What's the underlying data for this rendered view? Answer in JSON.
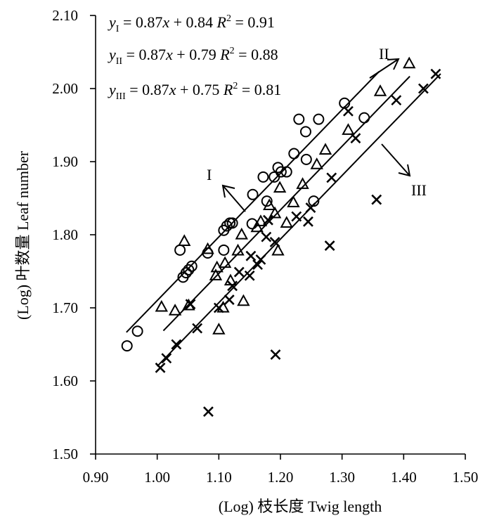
{
  "chart_data": {
    "type": "scatter",
    "title": "",
    "xlabel": "(Log) 枝长度 Twig length",
    "ylabel": "(Log) 叶数量 Leaf number",
    "xlim": [
      0.9,
      1.5
    ],
    "ylim": [
      1.5,
      2.1
    ],
    "x_ticks": [
      "0.90",
      "1.00",
      "1.10",
      "1.20",
      "1.30",
      "1.40",
      "1.50"
    ],
    "y_ticks": [
      "1.50",
      "1.60",
      "1.70",
      "1.80",
      "1.90",
      "2.00",
      "2.10"
    ],
    "grid": false,
    "series": [
      {
        "marker": "circle",
        "label": "I",
        "fit": {
          "slope": 0.87,
          "intercept": 0.84,
          "x_range": [
            0.95,
            1.36
          ]
        },
        "points": [
          [
            0.951,
            1.648
          ],
          [
            0.968,
            1.668
          ],
          [
            1.037,
            1.779
          ],
          [
            1.042,
            1.742
          ],
          [
            1.047,
            1.748
          ],
          [
            1.051,
            1.752
          ],
          [
            1.056,
            1.757
          ],
          [
            1.082,
            1.775
          ],
          [
            1.108,
            1.779
          ],
          [
            1.108,
            1.806
          ],
          [
            1.113,
            1.812
          ],
          [
            1.118,
            1.816
          ],
          [
            1.122,
            1.816
          ],
          [
            1.154,
            1.815
          ],
          [
            1.155,
            1.855
          ],
          [
            1.172,
            1.879
          ],
          [
            1.178,
            1.846
          ],
          [
            1.19,
            1.879
          ],
          [
            1.196,
            1.892
          ],
          [
            1.201,
            1.886
          ],
          [
            1.21,
            1.886
          ],
          [
            1.222,
            1.911
          ],
          [
            1.23,
            1.958
          ],
          [
            1.241,
            1.941
          ],
          [
            1.242,
            1.903
          ],
          [
            1.254,
            1.846
          ],
          [
            1.262,
            1.958
          ],
          [
            1.304,
            1.98
          ],
          [
            1.336,
            1.96
          ]
        ]
      },
      {
        "marker": "triangle",
        "label": "II",
        "fit": {
          "slope": 0.87,
          "intercept": 0.79,
          "x_range": [
            1.01,
            1.41
          ]
        },
        "points": [
          [
            1.007,
            1.701
          ],
          [
            1.029,
            1.696
          ],
          [
            1.044,
            1.791
          ],
          [
            1.051,
            1.703
          ],
          [
            1.082,
            1.78
          ],
          [
            1.095,
            1.744
          ],
          [
            1.097,
            1.755
          ],
          [
            1.1,
            1.67
          ],
          [
            1.107,
            1.7
          ],
          [
            1.11,
            1.761
          ],
          [
            1.119,
            1.737
          ],
          [
            1.131,
            1.778
          ],
          [
            1.137,
            1.8
          ],
          [
            1.14,
            1.709
          ],
          [
            1.162,
            1.81
          ],
          [
            1.168,
            1.818
          ],
          [
            1.182,
            1.84
          ],
          [
            1.191,
            1.829
          ],
          [
            1.196,
            1.778
          ],
          [
            1.199,
            1.864
          ],
          [
            1.21,
            1.816
          ],
          [
            1.221,
            1.844
          ],
          [
            1.236,
            1.869
          ],
          [
            1.273,
            1.916
          ],
          [
            1.259,
            1.896
          ],
          [
            1.31,
            1.943
          ],
          [
            1.362,
            1.996
          ],
          [
            1.409,
            2.034
          ]
        ]
      },
      {
        "marker": "cross",
        "label": "III",
        "fit": {
          "slope": 0.87,
          "intercept": 0.75,
          "x_range": [
            1.0,
            1.46
          ]
        },
        "points": [
          [
            1.005,
            1.618
          ],
          [
            1.015,
            1.631
          ],
          [
            1.031,
            1.65
          ],
          [
            1.054,
            1.705
          ],
          [
            1.065,
            1.672
          ],
          [
            1.083,
            1.558
          ],
          [
            1.1,
            1.7
          ],
          [
            1.117,
            1.711
          ],
          [
            1.122,
            1.73
          ],
          [
            1.133,
            1.749
          ],
          [
            1.15,
            1.744
          ],
          [
            1.152,
            1.771
          ],
          [
            1.163,
            1.759
          ],
          [
            1.168,
            1.766
          ],
          [
            1.177,
            1.797
          ],
          [
            1.18,
            1.82
          ],
          [
            1.191,
            1.79
          ],
          [
            1.192,
            1.636
          ],
          [
            1.226,
            1.825
          ],
          [
            1.245,
            1.818
          ],
          [
            1.249,
            1.837
          ],
          [
            1.28,
            1.785
          ],
          [
            1.283,
            1.878
          ],
          [
            1.31,
            1.969
          ],
          [
            1.322,
            1.932
          ],
          [
            1.356,
            1.848
          ],
          [
            1.388,
            1.984
          ],
          [
            1.432,
            2.0
          ],
          [
            1.452,
            2.02
          ]
        ]
      }
    ],
    "equations": [
      {
        "y": "y",
        "sub": "I",
        "rhs": " = 0.87",
        "x": "x",
        "plus": " + 0.84 ",
        "r": "R",
        "sup": "2",
        "val": " = 0.91"
      },
      {
        "y": "y",
        "sub": "II",
        "rhs": " = 0.87",
        "x": "x",
        "plus": " + 0.79 ",
        "r": "R",
        "sup": "2",
        "val": " = 0.88"
      },
      {
        "y": "y",
        "sub": "III",
        "rhs": " = 0.87",
        "x": "x",
        "plus": " + 0.75 ",
        "r": "R",
        "sup": "2",
        "val": " = 0.81"
      }
    ]
  }
}
